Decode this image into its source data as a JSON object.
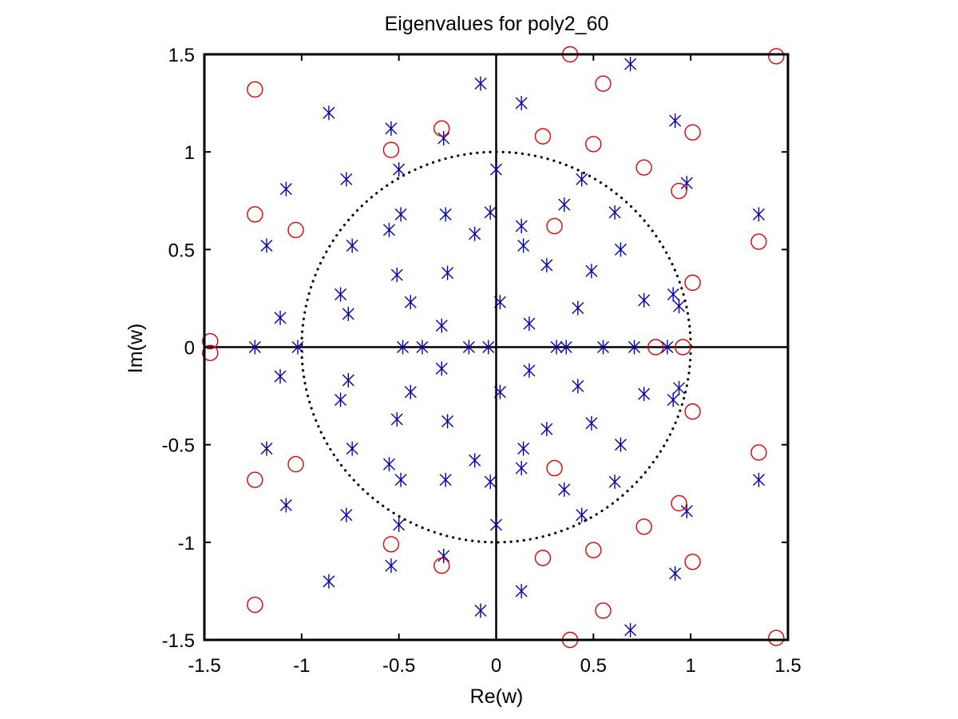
{
  "chart_data": {
    "type": "scatter",
    "title": "Eigenvalues for poly2_60",
    "xlabel": "Re(w)",
    "ylabel": "Im(w)",
    "xlim": [
      -1.5,
      1.5
    ],
    "ylim": [
      -1.5,
      1.5
    ],
    "x_ticks": [
      -1.5,
      -1,
      -0.5,
      0,
      0.5,
      1,
      1.5
    ],
    "y_ticks": [
      -1.5,
      -1,
      -0.5,
      0,
      0.5,
      1,
      1.5
    ],
    "x_tick_labels": [
      "-1.5",
      "-1",
      "-0.5",
      "0",
      "0.5",
      "1",
      "1.5"
    ],
    "y_tick_labels": [
      "-1.5",
      "-1",
      "-0.5",
      "0",
      "0.5",
      "1",
      "1.5"
    ],
    "grid": false,
    "legend": "none",
    "reference_lines": [
      {
        "kind": "hline",
        "y": 0,
        "style": "solid",
        "color": "#000000"
      },
      {
        "kind": "vline",
        "x": 0,
        "style": "solid",
        "color": "#000000"
      },
      {
        "kind": "circle",
        "center": [
          0,
          0
        ],
        "radius": 1,
        "style": "dotted",
        "color": "#000000"
      }
    ],
    "series": [
      {
        "marker": "asterisk",
        "color": "#0000b0",
        "points": [
          [
            -0.86,
            1.2
          ],
          [
            -0.08,
            1.35
          ],
          [
            0.13,
            1.25
          ],
          [
            0.69,
            1.45
          ],
          [
            0.92,
            1.16
          ],
          [
            -0.54,
            1.12
          ],
          [
            -0.27,
            1.07
          ],
          [
            -0.5,
            0.91
          ],
          [
            0.0,
            0.91
          ],
          [
            -0.77,
            0.86
          ],
          [
            0.44,
            0.86
          ],
          [
            0.98,
            0.84
          ],
          [
            -1.08,
            0.81
          ],
          [
            0.35,
            0.73
          ],
          [
            -0.49,
            0.68
          ],
          [
            -0.26,
            0.68
          ],
          [
            -0.03,
            0.69
          ],
          [
            0.61,
            0.69
          ],
          [
            1.35,
            0.68
          ],
          [
            0.13,
            0.62
          ],
          [
            -0.55,
            0.6
          ],
          [
            -0.11,
            0.58
          ],
          [
            -1.18,
            0.52
          ],
          [
            -0.74,
            0.52
          ],
          [
            0.14,
            0.52
          ],
          [
            0.64,
            0.5
          ],
          [
            0.26,
            0.42
          ],
          [
            0.49,
            0.39
          ],
          [
            -0.25,
            0.38
          ],
          [
            -0.51,
            0.37
          ],
          [
            -0.8,
            0.27
          ],
          [
            0.91,
            0.27
          ],
          [
            -0.44,
            0.23
          ],
          [
            0.02,
            0.23
          ],
          [
            0.76,
            0.24
          ],
          [
            0.94,
            0.21
          ],
          [
            0.42,
            0.2
          ],
          [
            -1.11,
            0.15
          ],
          [
            -0.76,
            0.17
          ],
          [
            0.17,
            0.12
          ],
          [
            -0.28,
            0.11
          ],
          [
            -1.24,
            0.0
          ],
          [
            -1.02,
            0.0
          ],
          [
            -0.48,
            0.0
          ],
          [
            -0.38,
            0.0
          ],
          [
            -0.14,
            0.0
          ],
          [
            -0.04,
            0.0
          ],
          [
            0.31,
            0.0
          ],
          [
            0.36,
            0.0
          ],
          [
            0.55,
            0.0
          ],
          [
            0.71,
            0.0
          ],
          [
            0.88,
            0.0
          ],
          [
            -0.28,
            -0.11
          ],
          [
            0.17,
            -0.12
          ],
          [
            -1.11,
            -0.15
          ],
          [
            -0.76,
            -0.17
          ],
          [
            0.42,
            -0.2
          ],
          [
            0.94,
            -0.21
          ],
          [
            -0.44,
            -0.23
          ],
          [
            0.02,
            -0.23
          ],
          [
            0.76,
            -0.24
          ],
          [
            -0.8,
            -0.27
          ],
          [
            0.91,
            -0.27
          ],
          [
            -0.51,
            -0.37
          ],
          [
            -0.25,
            -0.38
          ],
          [
            0.49,
            -0.39
          ],
          [
            0.26,
            -0.42
          ],
          [
            0.64,
            -0.5
          ],
          [
            -1.18,
            -0.52
          ],
          [
            -0.74,
            -0.52
          ],
          [
            0.14,
            -0.52
          ],
          [
            -0.11,
            -0.58
          ],
          [
            -0.55,
            -0.6
          ],
          [
            0.13,
            -0.62
          ],
          [
            -0.49,
            -0.68
          ],
          [
            -0.26,
            -0.68
          ],
          [
            -0.03,
            -0.69
          ],
          [
            0.61,
            -0.69
          ],
          [
            1.35,
            -0.68
          ],
          [
            0.35,
            -0.73
          ],
          [
            -1.08,
            -0.81
          ],
          [
            0.98,
            -0.84
          ],
          [
            -0.77,
            -0.86
          ],
          [
            0.44,
            -0.86
          ],
          [
            -0.5,
            -0.91
          ],
          [
            0.0,
            -0.91
          ],
          [
            -0.27,
            -1.07
          ],
          [
            -0.54,
            -1.12
          ],
          [
            0.92,
            -1.16
          ],
          [
            -0.86,
            -1.2
          ],
          [
            0.13,
            -1.25
          ],
          [
            -0.08,
            -1.35
          ],
          [
            0.69,
            -1.45
          ]
        ]
      },
      {
        "marker": "circle",
        "color": "#e00000",
        "points": [
          [
            0.38,
            1.5
          ],
          [
            1.44,
            1.49
          ],
          [
            -1.24,
            1.32
          ],
          [
            0.55,
            1.35
          ],
          [
            -0.28,
            1.12
          ],
          [
            0.24,
            1.08
          ],
          [
            1.01,
            1.1
          ],
          [
            0.5,
            1.04
          ],
          [
            -0.54,
            1.01
          ],
          [
            0.76,
            0.92
          ],
          [
            0.94,
            0.8
          ],
          [
            -1.24,
            0.68
          ],
          [
            0.3,
            0.62
          ],
          [
            -1.03,
            0.6
          ],
          [
            1.35,
            0.54
          ],
          [
            1.01,
            0.33
          ],
          [
            -1.47,
            0.03
          ],
          [
            -1.47,
            -0.03
          ],
          [
            0.82,
            0.0
          ],
          [
            0.96,
            0.0
          ],
          [
            1.01,
            -0.33
          ],
          [
            1.35,
            -0.54
          ],
          [
            -1.03,
            -0.6
          ],
          [
            0.3,
            -0.62
          ],
          [
            -1.24,
            -0.68
          ],
          [
            0.94,
            -0.8
          ],
          [
            0.76,
            -0.92
          ],
          [
            -0.54,
            -1.01
          ],
          [
            0.5,
            -1.04
          ],
          [
            0.24,
            -1.08
          ],
          [
            1.01,
            -1.1
          ],
          [
            -0.28,
            -1.12
          ],
          [
            -1.24,
            -1.32
          ],
          [
            0.55,
            -1.35
          ],
          [
            0.38,
            -1.5
          ],
          [
            1.44,
            -1.49
          ]
        ]
      }
    ]
  }
}
